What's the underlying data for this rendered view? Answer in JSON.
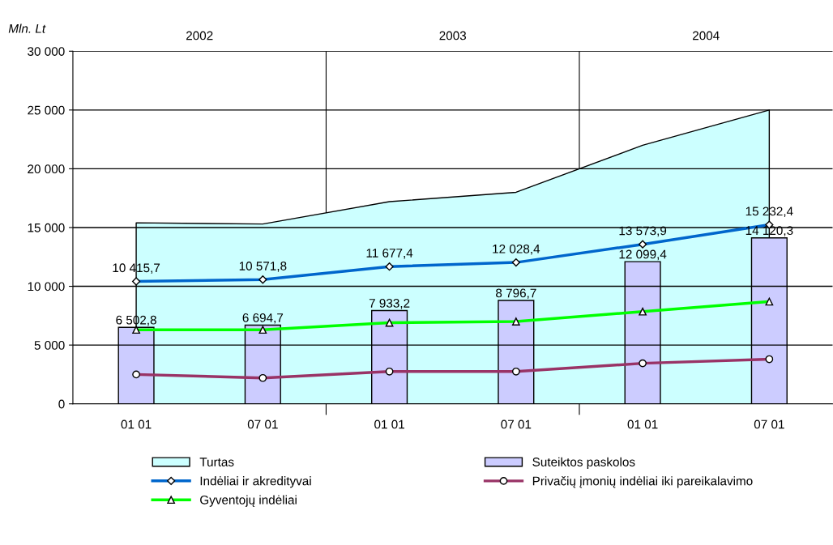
{
  "chart_data": {
    "type": "line",
    "ylabel": "Mln. Lt",
    "categories": [
      "01 01",
      "07 01",
      "01 01",
      "07 01",
      "01 01",
      "07 01"
    ],
    "annotations": [
      "2002",
      "2003",
      "2004"
    ],
    "ylim": [
      0,
      30000
    ],
    "yticks": [
      {
        "value": 0,
        "label": "0"
      },
      {
        "value": 5000,
        "label": "5 000"
      },
      {
        "value": 10000,
        "label": "10 000"
      },
      {
        "value": 15000,
        "label": "15 000"
      },
      {
        "value": 20000,
        "label": "20 000"
      },
      {
        "value": 25000,
        "label": "25 000"
      },
      {
        "value": 30000,
        "label": "30 000"
      }
    ],
    "grid": "y",
    "legend": "bottom",
    "series": [
      {
        "name": "Turtas",
        "type": "area",
        "color": "#ccffff",
        "values": [
          15400,
          15300,
          17200,
          18000,
          22000,
          25000
        ]
      },
      {
        "name": "Suteiktos paskolos",
        "type": "bar",
        "color": "#ccccff",
        "values": [
          6502.8,
          6694.7,
          7933.2,
          8796.7,
          12099.4,
          14120.3
        ],
        "value_labels": [
          "6 502,8",
          "6 694,7",
          "7 933,2",
          "8 796,7",
          "12 099,4",
          "14 120,3"
        ]
      },
      {
        "name": "Indėliai ir akredityvai",
        "color": "#0066cc",
        "marker": "diamond",
        "values": [
          10415.7,
          10571.8,
          11677.4,
          12028.4,
          13573.9,
          15232.4
        ],
        "value_labels": [
          "10 415,7",
          "10 571,8",
          "11 677,4",
          "12 028,4",
          "13 573,9",
          "15 232,4"
        ]
      },
      {
        "name": "Privačių įmonių indėliai iki pareikalavimo",
        "color": "#993366",
        "marker": "circle",
        "values": [
          2500,
          2200,
          2750,
          2750,
          3450,
          3800
        ]
      },
      {
        "name": "Gyventojų indėliai",
        "color": "#00ff00",
        "marker": "triangle",
        "values": [
          6300,
          6300,
          6900,
          7000,
          7850,
          8700
        ]
      }
    ]
  }
}
